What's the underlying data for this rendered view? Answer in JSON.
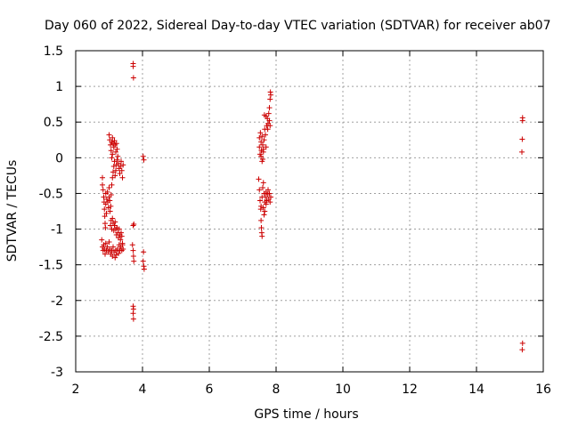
{
  "chart_data": {
    "type": "scatter",
    "title": "Day 060 of 2022, Sidereal Day-to-day VTEC variation (SDTVAR) for receiver ab07",
    "xlabel": "GPS time / hours",
    "ylabel": "SDTVAR / TECUs",
    "xlim": [
      2,
      16
    ],
    "ylim": [
      -3,
      1.5
    ],
    "xticks": [
      2,
      4,
      6,
      8,
      10,
      12,
      14,
      16
    ],
    "yticks": [
      -3,
      -2.5,
      -2,
      -1.5,
      -1,
      -0.5,
      0,
      0.5,
      1,
      1.5
    ],
    "xtick_labels": [
      "2",
      "4",
      "6",
      "8",
      "10",
      "12",
      "14",
      "16"
    ],
    "ytick_labels": [
      "-3",
      "-2.5",
      "-2",
      "-1.5",
      "-1",
      "-0.5",
      "0",
      "0.5",
      "1",
      "1.5"
    ],
    "grid": true,
    "marker": "+",
    "color": "#cc0000",
    "series": [
      {
        "name": "SDTVAR",
        "points": [
          [
            2.8,
            -0.28
          ],
          [
            2.8,
            -0.38
          ],
          [
            2.82,
            -0.45
          ],
          [
            2.84,
            -0.55
          ],
          [
            2.85,
            -0.62
          ],
          [
            2.86,
            -0.72
          ],
          [
            2.87,
            -0.82
          ],
          [
            2.88,
            -0.92
          ],
          [
            2.89,
            -0.98
          ],
          [
            2.9,
            -0.5
          ],
          [
            2.9,
            -0.65
          ],
          [
            2.92,
            -0.78
          ],
          [
            2.93,
            -0.58
          ],
          [
            2.95,
            -0.48
          ],
          [
            2.96,
            -0.62
          ],
          [
            2.98,
            -0.7
          ],
          [
            3.0,
            -0.55
          ],
          [
            3.0,
            -0.42
          ],
          [
            3.02,
            -0.6
          ],
          [
            3.03,
            -0.75
          ],
          [
            3.05,
            -0.68
          ],
          [
            3.06,
            -0.52
          ],
          [
            3.08,
            -0.38
          ],
          [
            3.1,
            -0.28
          ],
          [
            3.12,
            -0.2
          ],
          [
            3.14,
            -0.12
          ],
          [
            3.16,
            -0.05
          ],
          [
            3.18,
            -0.25
          ],
          [
            3.2,
            -0.18
          ],
          [
            3.22,
            -0.1
          ],
          [
            3.24,
            -0.03
          ],
          [
            3.26,
            0.02
          ],
          [
            3.28,
            -0.08
          ],
          [
            3.3,
            -0.15
          ],
          [
            3.32,
            -0.22
          ],
          [
            3.34,
            -0.12
          ],
          [
            3.36,
            -0.05
          ],
          [
            3.38,
            -0.18
          ],
          [
            3.4,
            -0.28
          ],
          [
            3.42,
            -0.1
          ],
          [
            3.0,
            0.32
          ],
          [
            3.02,
            0.25
          ],
          [
            3.04,
            0.18
          ],
          [
            3.06,
            0.1
          ],
          [
            3.08,
            0.22
          ],
          [
            3.1,
            0.28
          ],
          [
            3.12,
            0.2
          ],
          [
            3.14,
            0.15
          ],
          [
            3.16,
            0.24
          ],
          [
            3.18,
            0.18
          ],
          [
            3.2,
            0.08
          ],
          [
            3.22,
            0.2
          ],
          [
            3.24,
            0.12
          ],
          [
            3.1,
            0.05
          ],
          [
            3.08,
            0.0
          ],
          [
            3.04,
            -0.95
          ],
          [
            3.06,
            -0.88
          ],
          [
            3.08,
            -1.0
          ],
          [
            3.1,
            -0.85
          ],
          [
            3.12,
            -0.92
          ],
          [
            3.14,
            -1.02
          ],
          [
            3.16,
            -0.95
          ],
          [
            3.18,
            -0.9
          ],
          [
            3.2,
            -1.0
          ],
          [
            3.22,
            -1.08
          ],
          [
            3.24,
            -0.98
          ],
          [
            3.26,
            -1.05
          ],
          [
            3.28,
            -1.12
          ],
          [
            3.3,
            -1.0
          ],
          [
            3.32,
            -1.08
          ],
          [
            3.34,
            -1.15
          ],
          [
            3.36,
            -1.05
          ],
          [
            3.38,
            -1.1
          ],
          [
            3.4,
            -1.2
          ],
          [
            2.78,
            -1.15
          ],
          [
            2.8,
            -1.25
          ],
          [
            2.82,
            -1.3
          ],
          [
            2.84,
            -1.22
          ],
          [
            2.86,
            -1.28
          ],
          [
            2.88,
            -1.35
          ],
          [
            2.9,
            -1.2
          ],
          [
            2.92,
            -1.3
          ],
          [
            2.95,
            -1.25
          ],
          [
            2.98,
            -1.32
          ],
          [
            3.0,
            -1.18
          ],
          [
            3.02,
            -1.28
          ],
          [
            3.05,
            -1.35
          ],
          [
            3.08,
            -1.3
          ],
          [
            3.1,
            -1.38
          ],
          [
            3.12,
            -1.25
          ],
          [
            3.15,
            -1.32
          ],
          [
            3.18,
            -1.4
          ],
          [
            3.2,
            -1.3
          ],
          [
            3.22,
            -1.36
          ],
          [
            3.25,
            -1.28
          ],
          [
            3.28,
            -1.34
          ],
          [
            3.3,
            -1.22
          ],
          [
            3.32,
            -1.3
          ],
          [
            3.35,
            -1.25
          ],
          [
            3.38,
            -1.3
          ],
          [
            3.4,
            -1.22
          ],
          [
            3.42,
            -1.28
          ],
          [
            3.72,
            1.32
          ],
          [
            3.72,
            1.28
          ],
          [
            3.73,
            1.12
          ],
          [
            3.72,
            -0.95
          ],
          [
            3.74,
            -0.93
          ],
          [
            3.7,
            -1.22
          ],
          [
            3.72,
            -1.3
          ],
          [
            3.73,
            -1.38
          ],
          [
            3.74,
            -1.45
          ],
          [
            3.72,
            -2.08
          ],
          [
            3.73,
            -2.12
          ],
          [
            3.72,
            -2.18
          ],
          [
            3.73,
            -2.26
          ],
          [
            4.02,
            0.02
          ],
          [
            4.04,
            -0.03
          ],
          [
            4.03,
            -1.32
          ],
          [
            4.02,
            -1.45
          ],
          [
            4.04,
            -1.52
          ],
          [
            4.05,
            -1.56
          ],
          [
            7.5,
            0.28
          ],
          [
            7.5,
            0.15
          ],
          [
            7.52,
            0.05
          ],
          [
            7.53,
            0.35
          ],
          [
            7.55,
            0.22
          ],
          [
            7.56,
            0.1
          ],
          [
            7.58,
            0.3
          ],
          [
            7.6,
            0.18
          ],
          [
            7.62,
            0.08
          ],
          [
            7.64,
            0.25
          ],
          [
            7.66,
            0.4
          ],
          [
            7.68,
            0.32
          ],
          [
            7.7,
            0.15
          ],
          [
            7.72,
            0.45
          ],
          [
            7.74,
            0.55
          ],
          [
            7.76,
            0.48
          ],
          [
            7.78,
            0.62
          ],
          [
            7.8,
            0.7
          ],
          [
            7.82,
            0.82
          ],
          [
            7.83,
            0.92
          ],
          [
            7.6,
            -0.02
          ],
          [
            7.62,
            0.12
          ],
          [
            7.65,
            0.6
          ],
          [
            7.7,
            0.58
          ],
          [
            7.75,
            0.4
          ],
          [
            7.58,
            -0.05
          ],
          [
            7.55,
            0.02
          ],
          [
            7.8,
            0.52
          ],
          [
            7.82,
            0.45
          ],
          [
            7.84,
            0.88
          ],
          [
            7.48,
            -0.3
          ],
          [
            7.5,
            -0.45
          ],
          [
            7.52,
            -0.6
          ],
          [
            7.54,
            -0.72
          ],
          [
            7.55,
            -0.88
          ],
          [
            7.56,
            -0.98
          ],
          [
            7.57,
            -1.05
          ],
          [
            7.58,
            -1.1
          ],
          [
            7.55,
            -0.68
          ],
          [
            7.58,
            -0.55
          ],
          [
            7.6,
            -0.42
          ],
          [
            7.62,
            -0.35
          ],
          [
            7.64,
            -0.5
          ],
          [
            7.66,
            -0.62
          ],
          [
            7.68,
            -0.55
          ],
          [
            7.7,
            -0.48
          ],
          [
            7.72,
            -0.6
          ],
          [
            7.74,
            -0.52
          ],
          [
            7.76,
            -0.45
          ],
          [
            7.78,
            -0.58
          ],
          [
            7.8,
            -0.5
          ],
          [
            7.82,
            -0.62
          ],
          [
            7.84,
            -0.55
          ],
          [
            7.62,
            -0.7
          ],
          [
            7.66,
            -0.75
          ],
          [
            7.7,
            -0.65
          ],
          [
            7.64,
            -0.8
          ],
          [
            15.38,
            0.56
          ],
          [
            15.38,
            0.52
          ],
          [
            15.37,
            0.26
          ],
          [
            15.36,
            0.08
          ],
          [
            15.38,
            -2.6
          ],
          [
            15.37,
            -2.69
          ]
        ]
      }
    ]
  }
}
